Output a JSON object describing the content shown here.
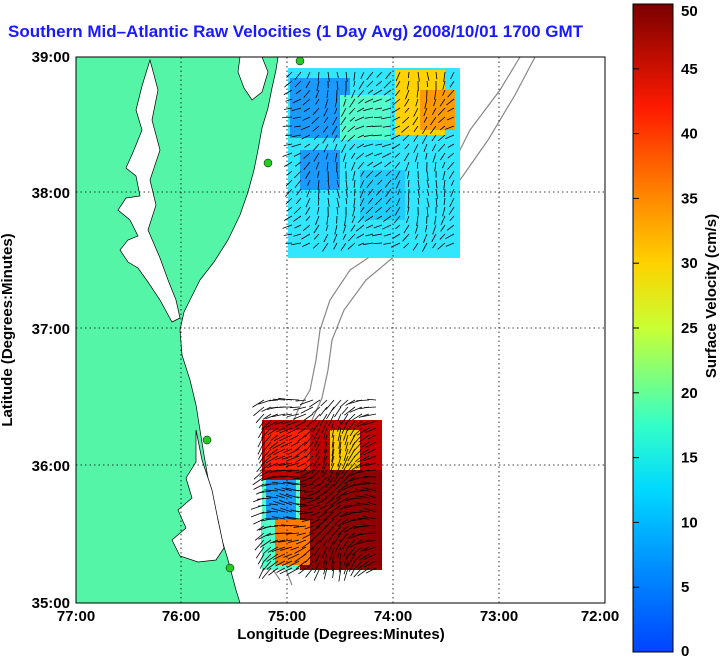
{
  "title": "Southern Mid–Atlantic Raw Velocities (1 Day Avg) 2008/10/01 1700 GMT",
  "x_axis": {
    "label": "Longitude (Degrees:Minutes)",
    "ticks": [
      "77:00",
      "76:00",
      "75:00",
      "74:00",
      "73:00",
      "72:00"
    ],
    "range_deg_west": [
      77,
      72
    ]
  },
  "y_axis": {
    "label": "Latitude (Degrees:Minutes)",
    "ticks": [
      "39:00",
      "38:00",
      "37:00",
      "36:00",
      "35:00"
    ],
    "range_deg_north": [
      35,
      39
    ]
  },
  "colorbar": {
    "label": "Surface Velocity (cm/s)",
    "min": 0,
    "max": 50,
    "ticks": [
      "0",
      "5",
      "10",
      "15",
      "20",
      "25",
      "30",
      "35",
      "40",
      "45",
      "50"
    ],
    "colormap": "jet"
  },
  "colors": {
    "land": "#55f5a8",
    "water": "#ffffff",
    "title": "#1a1aff",
    "station": "#22cc22",
    "bathymetry": "#888888"
  },
  "grid": "dotted",
  "chart_data": {
    "type": "heatmap",
    "description_of_fields": "surface current velocity regions (cm/s) with vectors",
    "regions": [
      {
        "name": "northern_patch",
        "lon_range": [
          -75.1,
          -73.55
        ],
        "lat_range": [
          37.5,
          38.95
        ],
        "speed_range_cm_s": [
          5,
          35
        ]
      },
      {
        "name": "southern_patch",
        "lon_range": [
          -75.3,
          -73.9
        ],
        "lat_range": [
          35.3,
          36.6
        ],
        "speed_range_cm_s": [
          5,
          50
        ]
      }
    ]
  }
}
